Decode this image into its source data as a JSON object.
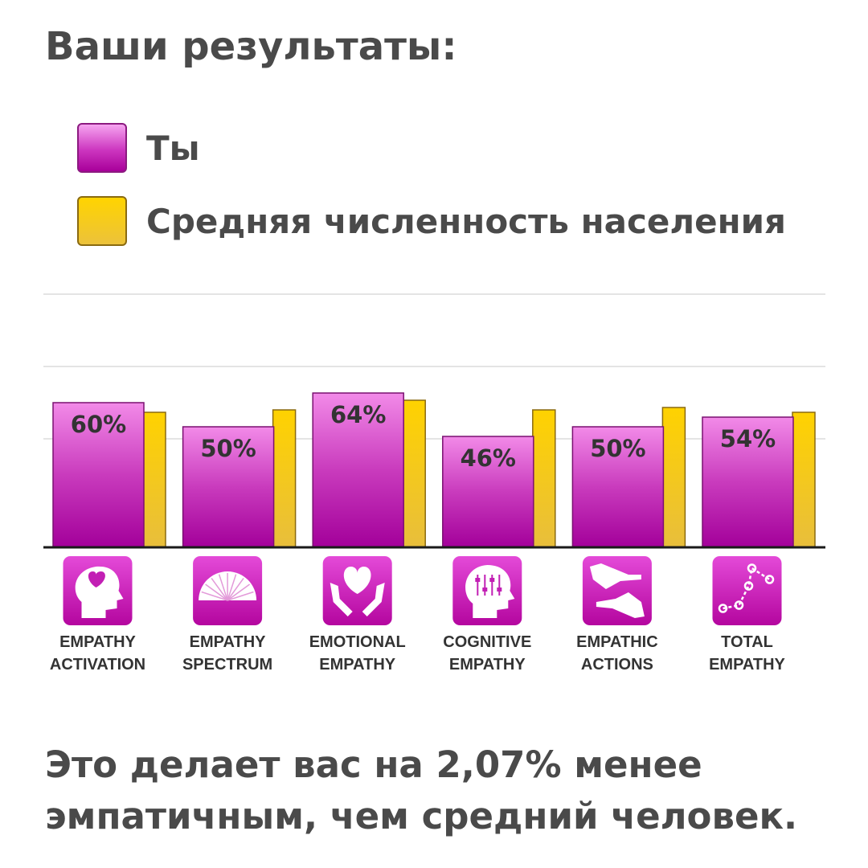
{
  "title": "Ваши результаты:",
  "legend": [
    {
      "label": "Ты",
      "color": "#c21fb4"
    },
    {
      "label": "Средняя численность населения",
      "color": "#f5c518"
    }
  ],
  "chart_data": {
    "type": "bar",
    "ylim": [
      0,
      100
    ],
    "grid": true,
    "legend_position": "top",
    "categories": [
      {
        "line1": "EMPATHY",
        "line2": "ACTIVATION",
        "icon": "head-heart-icon"
      },
      {
        "line1": "EMPATHY",
        "line2": "SPECTRUM",
        "icon": "spectrum-fan-icon"
      },
      {
        "line1": "EMOTIONAL",
        "line2": "EMPATHY",
        "icon": "hands-heart-icon"
      },
      {
        "line1": "COGNITIVE",
        "line2": "EMPATHY",
        "icon": "head-sliders-icon"
      },
      {
        "line1": "EMPATHIC",
        "line2": "ACTIONS",
        "icon": "helping-hands-icon"
      },
      {
        "line1": "TOTAL",
        "line2": "EMPATHY",
        "icon": "constellation-icon"
      }
    ],
    "series": [
      {
        "name": "Ты",
        "values": [
          60,
          50,
          64,
          46,
          50,
          54
        ],
        "labels": [
          "60%",
          "50%",
          "64%",
          "46%",
          "50%",
          "54%"
        ]
      },
      {
        "name": "Средняя численность населения",
        "values": [
          56,
          57,
          61,
          57,
          58,
          56
        ]
      }
    ]
  },
  "footer": "Это делает вас на 2,07% менее эмпатичным, чем средний человек."
}
